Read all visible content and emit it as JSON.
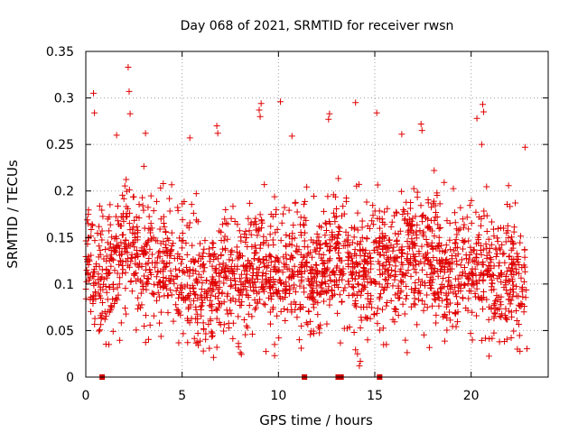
{
  "chart_data": {
    "type": "scatter",
    "title": "Day 068 of 2021, SRMTID for receiver rwsn",
    "xlabel": "GPS time / hours",
    "ylabel": "SRMTID / TECUs",
    "xlim": [
      0,
      24
    ],
    "ylim": [
      0,
      0.35
    ],
    "x_ticks": [
      0,
      5,
      10,
      15,
      20
    ],
    "x_tick_labels": [
      "0",
      "5",
      "10",
      "15",
      "20"
    ],
    "y_ticks": [
      0,
      0.05,
      0.1,
      0.15,
      0.2,
      0.25,
      0.3,
      0.35
    ],
    "y_tick_labels": [
      "0",
      "0.05",
      "0.1",
      "0.15",
      "0.2",
      "0.25",
      "0.3",
      "0.35"
    ],
    "grid": true,
    "marker": "plus",
    "color": "#e00000",
    "data_range_hours": [
      0,
      22.9
    ],
    "gap_markers_hours": [
      0.85,
      11.35,
      13.1,
      13.25,
      15.25
    ],
    "outliers": [
      {
        "x": 0.4,
        "y": 0.305
      },
      {
        "x": 0.45,
        "y": 0.284
      },
      {
        "x": 2.2,
        "y": 0.333
      },
      {
        "x": 2.25,
        "y": 0.307
      },
      {
        "x": 2.3,
        "y": 0.283
      },
      {
        "x": 1.6,
        "y": 0.26
      },
      {
        "x": 3.1,
        "y": 0.262
      },
      {
        "x": 5.4,
        "y": 0.257
      },
      {
        "x": 6.8,
        "y": 0.27
      },
      {
        "x": 6.85,
        "y": 0.262
      },
      {
        "x": 9.0,
        "y": 0.287
      },
      {
        "x": 9.1,
        "y": 0.294
      },
      {
        "x": 9.05,
        "y": 0.28
      },
      {
        "x": 10.1,
        "y": 0.296
      },
      {
        "x": 10.7,
        "y": 0.259
      },
      {
        "x": 12.6,
        "y": 0.277
      },
      {
        "x": 12.65,
        "y": 0.283
      },
      {
        "x": 14.0,
        "y": 0.295
      },
      {
        "x": 15.1,
        "y": 0.284
      },
      {
        "x": 16.4,
        "y": 0.261
      },
      {
        "x": 17.4,
        "y": 0.272
      },
      {
        "x": 17.45,
        "y": 0.265
      },
      {
        "x": 20.3,
        "y": 0.278
      },
      {
        "x": 20.6,
        "y": 0.293
      },
      {
        "x": 20.65,
        "y": 0.285
      },
      {
        "x": 20.55,
        "y": 0.25
      },
      {
        "x": 22.8,
        "y": 0.247
      },
      {
        "x": 9.8,
        "y": 0.023
      },
      {
        "x": 14.2,
        "y": 0.012
      },
      {
        "x": 14.25,
        "y": 0.017
      },
      {
        "x": 14.1,
        "y": 0.025
      },
      {
        "x": 6.1,
        "y": 0.028
      },
      {
        "x": 15.6,
        "y": 0.035
      },
      {
        "x": 1.2,
        "y": 0.035
      },
      {
        "x": 22.4,
        "y": 0.03
      }
    ],
    "trend": [
      {
        "x": 0,
        "y": 0.12
      },
      {
        "x": 1,
        "y": 0.11
      },
      {
        "x": 2,
        "y": 0.14
      },
      {
        "x": 3,
        "y": 0.13
      },
      {
        "x": 4,
        "y": 0.12
      },
      {
        "x": 5,
        "y": 0.11
      },
      {
        "x": 6,
        "y": 0.09
      },
      {
        "x": 7,
        "y": 0.1
      },
      {
        "x": 8,
        "y": 0.11
      },
      {
        "x": 9,
        "y": 0.12
      },
      {
        "x": 10,
        "y": 0.12
      },
      {
        "x": 11,
        "y": 0.12
      },
      {
        "x": 12,
        "y": 0.11
      },
      {
        "x": 13,
        "y": 0.13
      },
      {
        "x": 14,
        "y": 0.1
      },
      {
        "x": 15,
        "y": 0.12
      },
      {
        "x": 16,
        "y": 0.12
      },
      {
        "x": 17,
        "y": 0.13
      },
      {
        "x": 18,
        "y": 0.12
      },
      {
        "x": 19,
        "y": 0.11
      },
      {
        "x": 20,
        "y": 0.12
      },
      {
        "x": 21,
        "y": 0.11
      },
      {
        "x": 22,
        "y": 0.11
      },
      {
        "x": 22.9,
        "y": 0.11
      }
    ],
    "n_points": 2200,
    "spread": 0.034
  }
}
